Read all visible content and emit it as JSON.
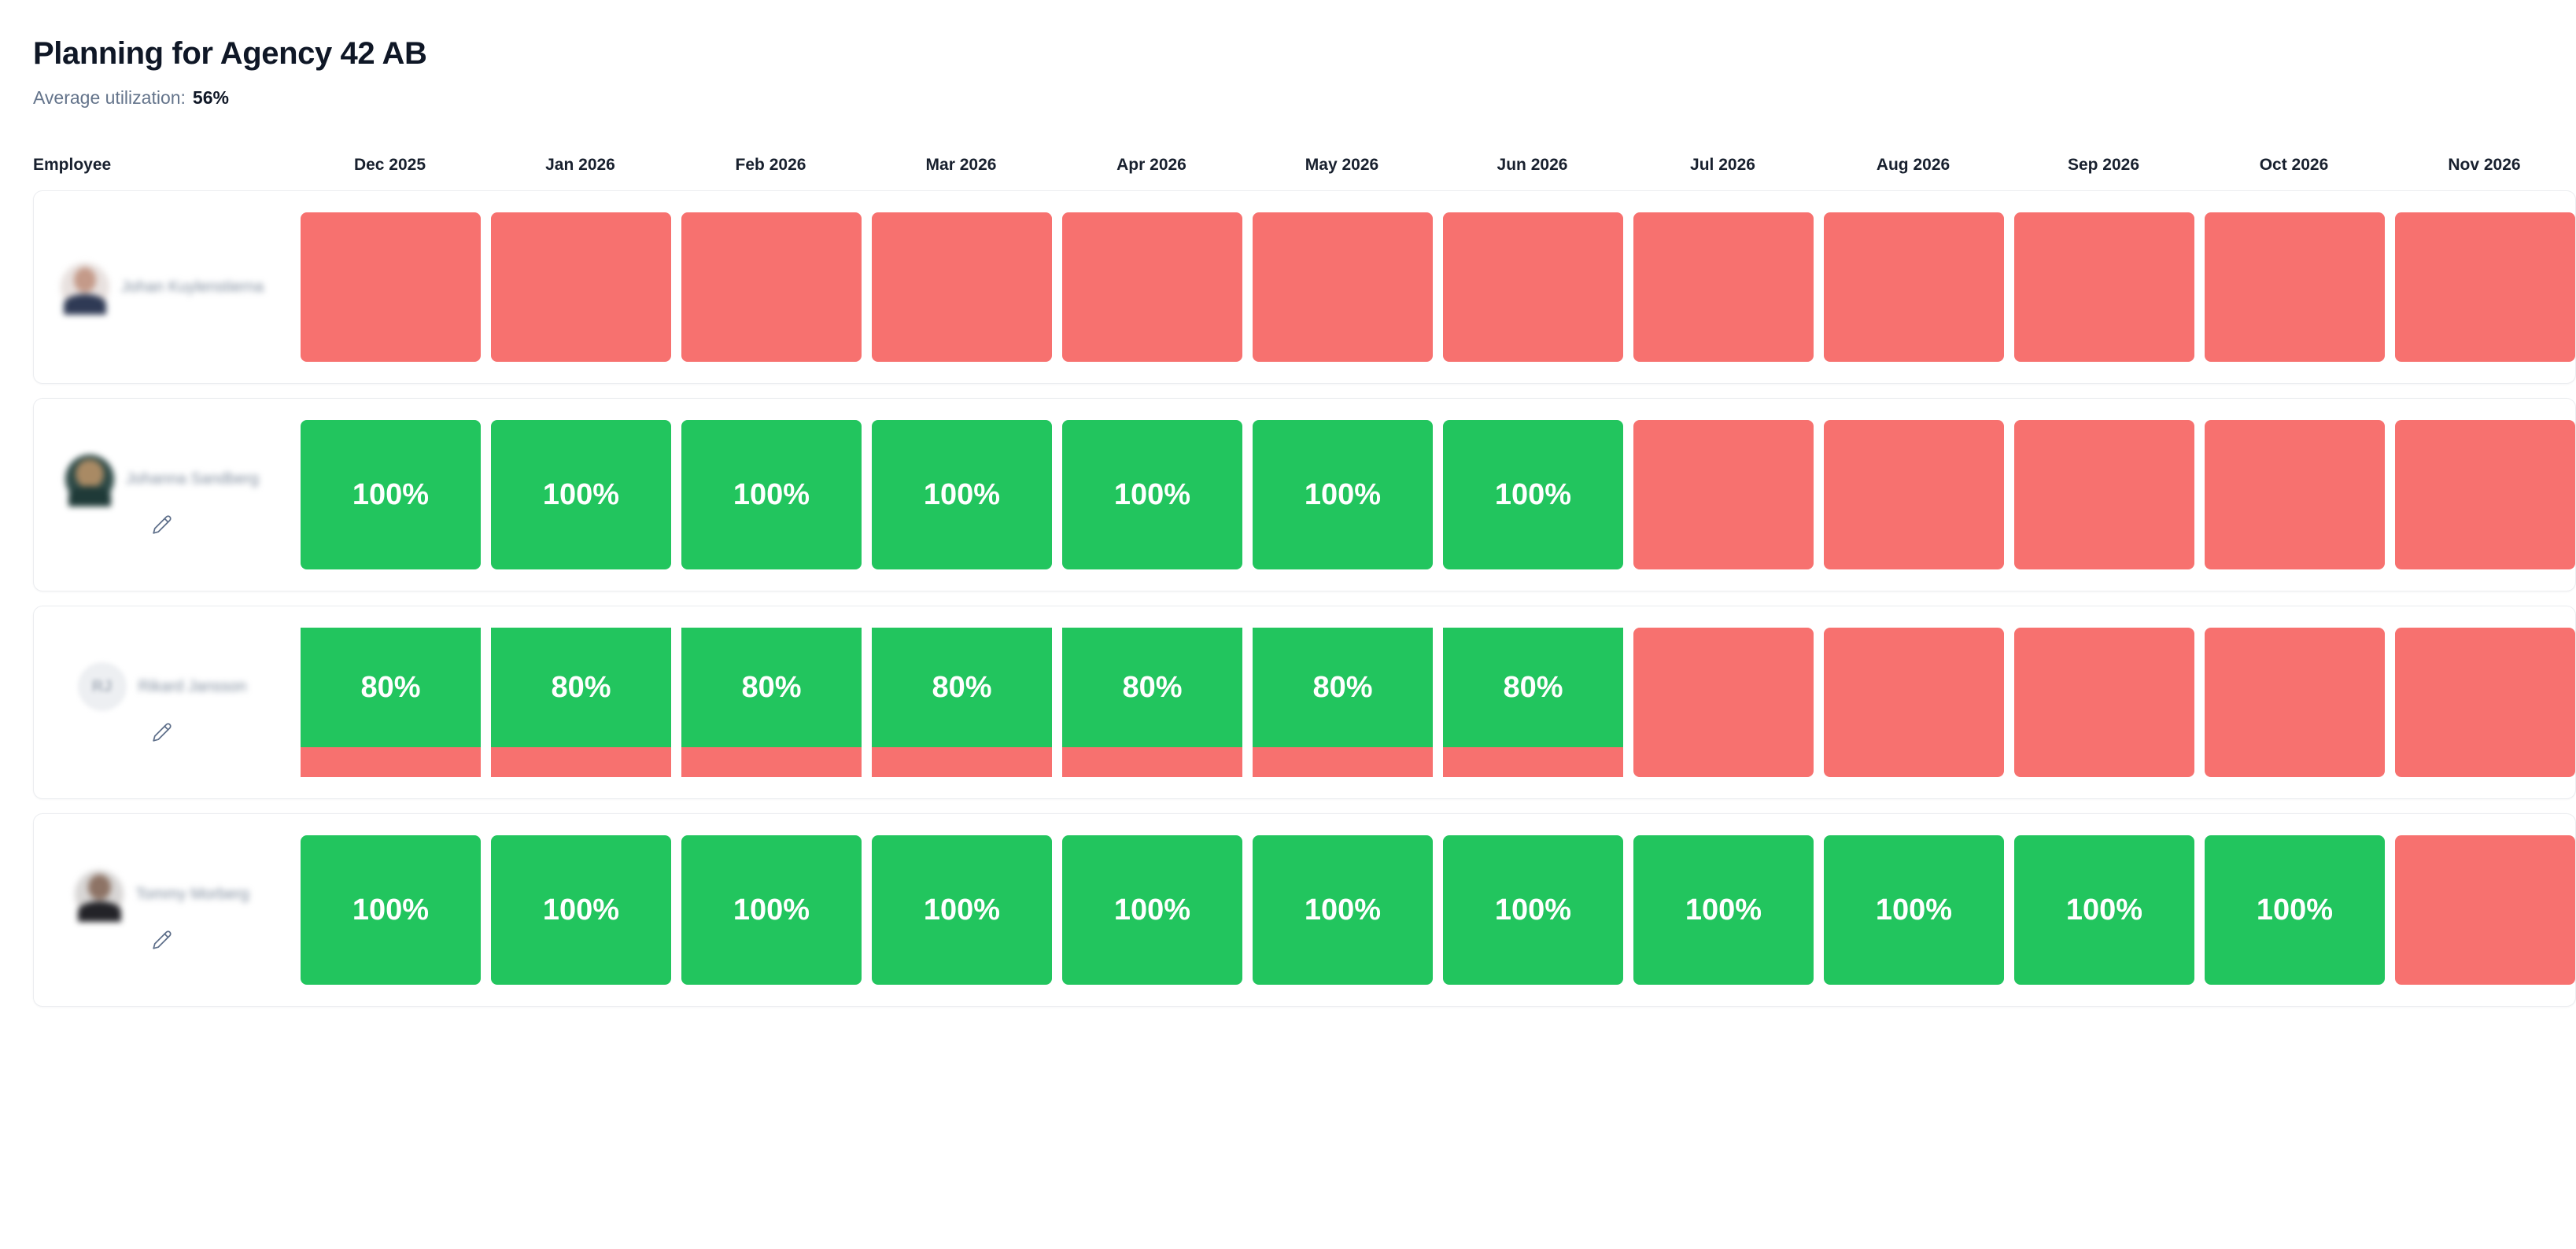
{
  "page": {
    "title": "Planning for Agency 42 AB",
    "average_utilization_label": "Average utilization:",
    "average_utilization_value": "56%"
  },
  "colors": {
    "utilized_green": "#22c55e",
    "unutilized_red": "#f7716f"
  },
  "icons": {
    "edit": "pencil-icon"
  },
  "table": {
    "employee_header": "Employee",
    "months": [
      "Dec 2025",
      "Jan 2026",
      "Feb 2026",
      "Mar 2026",
      "Apr 2026",
      "May 2026",
      "Jun 2026",
      "Jul 2026",
      "Aug 2026",
      "Sep 2026",
      "Oct 2026",
      "Nov 2026"
    ],
    "employees": [
      {
        "name": "Johan Kuylenstierna",
        "avatar": {
          "type": "photo",
          "variant": "av1"
        },
        "has_edit_button": false,
        "cells": [
          {
            "state": "empty"
          },
          {
            "state": "empty"
          },
          {
            "state": "empty"
          },
          {
            "state": "empty"
          },
          {
            "state": "empty"
          },
          {
            "state": "empty"
          },
          {
            "state": "empty"
          },
          {
            "state": "empty"
          },
          {
            "state": "empty"
          },
          {
            "state": "empty"
          },
          {
            "state": "empty"
          },
          {
            "state": "empty"
          }
        ]
      },
      {
        "name": "Johanna Sandberg",
        "avatar": {
          "type": "photo",
          "variant": "av2"
        },
        "has_edit_button": true,
        "cells": [
          {
            "state": "full",
            "value": 100,
            "label": "100%"
          },
          {
            "state": "full",
            "value": 100,
            "label": "100%"
          },
          {
            "state": "full",
            "value": 100,
            "label": "100%"
          },
          {
            "state": "full",
            "value": 100,
            "label": "100%"
          },
          {
            "state": "full",
            "value": 100,
            "label": "100%"
          },
          {
            "state": "full",
            "value": 100,
            "label": "100%"
          },
          {
            "state": "full",
            "value": 100,
            "label": "100%"
          },
          {
            "state": "empty"
          },
          {
            "state": "empty"
          },
          {
            "state": "empty"
          },
          {
            "state": "empty"
          },
          {
            "state": "empty"
          }
        ]
      },
      {
        "name": "Rikard Jansson",
        "avatar": {
          "type": "initials",
          "variant": "av3",
          "initials": "RJ"
        },
        "has_edit_button": true,
        "cells": [
          {
            "state": "partial",
            "value": 80,
            "label": "80%"
          },
          {
            "state": "partial",
            "value": 80,
            "label": "80%"
          },
          {
            "state": "partial",
            "value": 80,
            "label": "80%"
          },
          {
            "state": "partial",
            "value": 80,
            "label": "80%"
          },
          {
            "state": "partial",
            "value": 80,
            "label": "80%"
          },
          {
            "state": "partial",
            "value": 80,
            "label": "80%"
          },
          {
            "state": "partial",
            "value": 80,
            "label": "80%"
          },
          {
            "state": "empty"
          },
          {
            "state": "empty"
          },
          {
            "state": "empty"
          },
          {
            "state": "empty"
          },
          {
            "state": "empty"
          }
        ]
      },
      {
        "name": "Tommy Morberg",
        "avatar": {
          "type": "photo",
          "variant": "av4"
        },
        "has_edit_button": true,
        "cells": [
          {
            "state": "full",
            "value": 100,
            "label": "100%"
          },
          {
            "state": "full",
            "value": 100,
            "label": "100%"
          },
          {
            "state": "full",
            "value": 100,
            "label": "100%"
          },
          {
            "state": "full",
            "value": 100,
            "label": "100%"
          },
          {
            "state": "full",
            "value": 100,
            "label": "100%"
          },
          {
            "state": "full",
            "value": 100,
            "label": "100%"
          },
          {
            "state": "full",
            "value": 100,
            "label": "100%"
          },
          {
            "state": "full",
            "value": 100,
            "label": "100%"
          },
          {
            "state": "full",
            "value": 100,
            "label": "100%"
          },
          {
            "state": "full",
            "value": 100,
            "label": "100%"
          },
          {
            "state": "full",
            "value": 100,
            "label": "100%"
          },
          {
            "state": "empty"
          }
        ]
      }
    ]
  }
}
